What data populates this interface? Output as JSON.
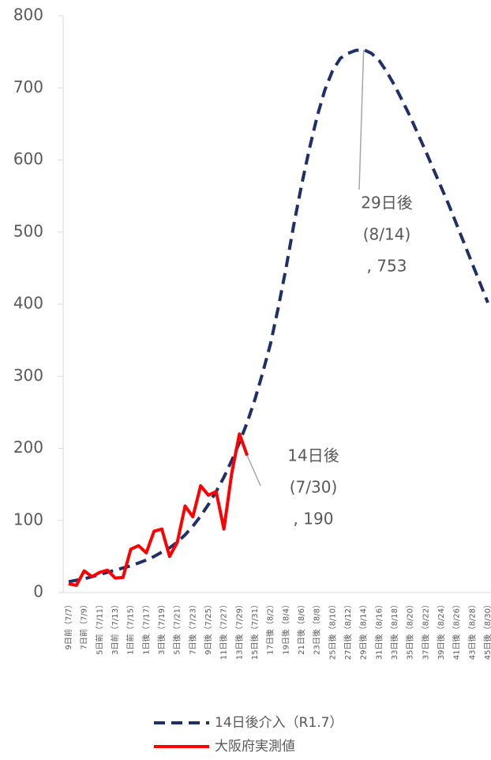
{
  "chart_data": {
    "type": "line",
    "categories": [
      "9日前（7/7）",
      null,
      "7日前（7/9）",
      null,
      "5日前（7/11）",
      null,
      "3日前（7/13）",
      null,
      "1日前（7/15）",
      null,
      "1日後（7/17）",
      null,
      "3日後（7/19）",
      null,
      "5日後（7/21）",
      null,
      "7日後（7/23）",
      null,
      "9日後（7/25）",
      null,
      "11日後（7/27）",
      null,
      "13日後（7/29）",
      null,
      "15日後（7/31）",
      null,
      "17日後（8/2）",
      null,
      "19日後（8/4）",
      null,
      "21日後（8/6）",
      null,
      "23日後（8/8）",
      null,
      "25日後（8/10）",
      null,
      "27日後（8/12）",
      null,
      "29日後（8/14）",
      null,
      "31日後（8/16）",
      null,
      "33日後（8/18）",
      null,
      "35日後（8/20）",
      null,
      "37日後（8/22）",
      null,
      "39日後（8/24）",
      null,
      "41日後（8/26）",
      null,
      "43日後（8/28）",
      null,
      "45日後（8/30）"
    ],
    "series": [
      {
        "name": "14日後介入（R1.7）",
        "color": "#1f3068",
        "dashed": true,
        "values": [
          15,
          17,
          19,
          22,
          25,
          28,
          31,
          34,
          37,
          41,
          45,
          50,
          56,
          62,
          70,
          80,
          92,
          106,
          122,
          140,
          160,
          183,
          208,
          236,
          268,
          305,
          345,
          395,
          450,
          510,
          565,
          615,
          660,
          697,
          724,
          741,
          748,
          752,
          753,
          748,
          738,
          722,
          703,
          682,
          660,
          636,
          612,
          587,
          562,
          537,
          510,
          483,
          456,
          429,
          402
        ]
      },
      {
        "name": "大阪府実測値",
        "color": "#ff0000",
        "dashed": false,
        "values": [
          12,
          10,
          30,
          22,
          28,
          31,
          20,
          21,
          60,
          65,
          55,
          85,
          88,
          50,
          70,
          120,
          105,
          148,
          135,
          140,
          88,
          165,
          220,
          190,
          null,
          null,
          null,
          null,
          null,
          null,
          null,
          null,
          null,
          null,
          null,
          null,
          null,
          null,
          null,
          null,
          null,
          null,
          null,
          null,
          null,
          null,
          null,
          null,
          null,
          null,
          null,
          null,
          null,
          null,
          null
        ]
      }
    ],
    "annotations": [
      [
        "29日後",
        "(8/14)",
        ", 753"
      ],
      [
        "14日後",
        "(7/30)",
        ", 190"
      ]
    ],
    "ylim": [
      0,
      800
    ],
    "yticks": [
      0,
      100,
      200,
      300,
      400,
      500,
      600,
      700,
      800
    ],
    "grid": false,
    "legend": "bottom"
  }
}
